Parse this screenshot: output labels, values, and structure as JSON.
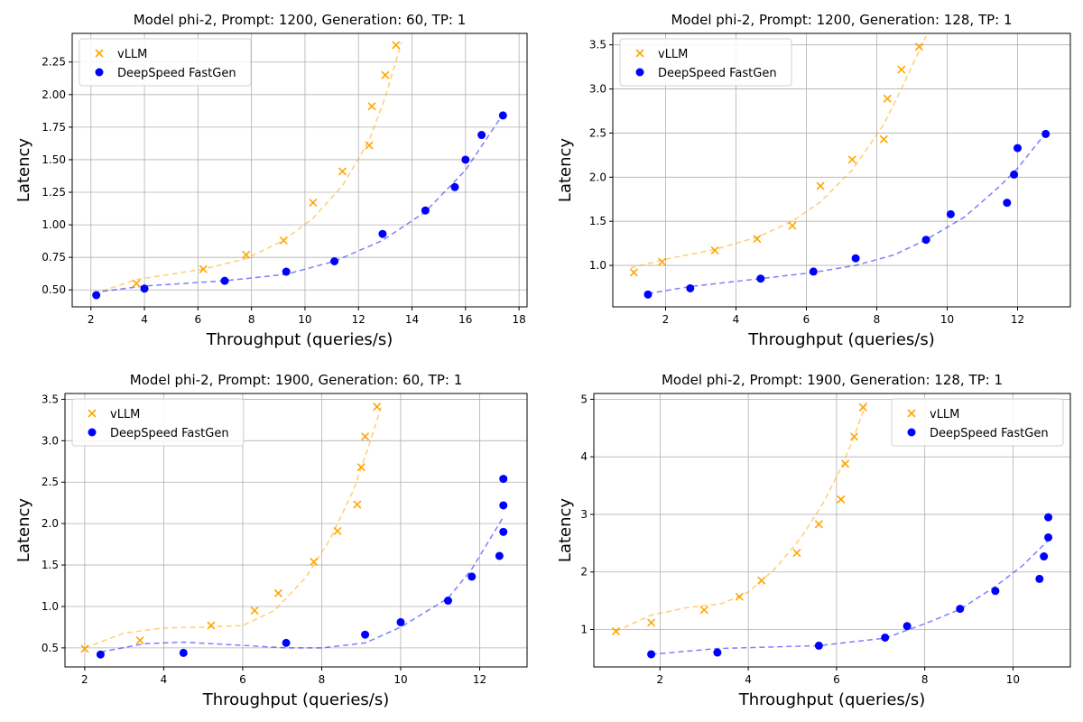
{
  "colors": {
    "vllm": "#ffa500",
    "fastgen": "#0000ff",
    "grid": "#b0b0b0",
    "axis": "#000000"
  },
  "chart_data": [
    {
      "type": "scatter",
      "title": "Model phi-2, Prompt: 1200, Generation: 60, TP: 1",
      "xlabel": "Throughput (queries/s)",
      "ylabel": "Latency",
      "xlim": [
        1.3,
        18.3
      ],
      "ylim": [
        0.37,
        2.47
      ],
      "xticks": [
        2,
        4,
        6,
        8,
        10,
        12,
        14,
        16,
        18
      ],
      "xtick_labels": [
        "2",
        "4",
        "6",
        "8",
        "10",
        "12",
        "14",
        "16",
        "18"
      ],
      "yticks": [
        0.5,
        0.75,
        1.0,
        1.25,
        1.5,
        1.75,
        2.0,
        2.25
      ],
      "ytick_labels": [
        "0.50",
        "0.75",
        "1.00",
        "1.25",
        "1.50",
        "1.75",
        "2.00",
        "2.25"
      ],
      "grid": true,
      "legend_position": "top-left",
      "series": [
        {
          "name": "vLLM",
          "marker": "x",
          "color": "#ffa500",
          "x": [
            3.7,
            6.2,
            7.8,
            9.2,
            10.3,
            11.4,
            12.4,
            12.5,
            13.0,
            13.4
          ],
          "y": [
            0.55,
            0.66,
            0.77,
            0.88,
            1.17,
            1.41,
            1.61,
            1.91,
            2.15,
            2.38
          ],
          "fit": {
            "x": [
              2.1,
              3.7,
              6.2,
              7.8,
              9.2,
              10.3,
              11.4,
              12.4,
              13.0,
              13.6
            ],
            "y": [
              0.47,
              0.58,
              0.66,
              0.74,
              0.88,
              1.05,
              1.3,
              1.65,
              1.98,
              2.4
            ]
          }
        },
        {
          "name": "DeepSpeed FastGen",
          "marker": "o",
          "color": "#0000ff",
          "x": [
            2.2,
            4.0,
            7.0,
            9.3,
            11.1,
            12.9,
            14.5,
            15.6,
            16.0,
            16.6,
            17.4
          ],
          "y": [
            0.46,
            0.51,
            0.57,
            0.64,
            0.72,
            0.93,
            1.11,
            1.29,
            1.5,
            1.69,
            1.84
          ],
          "fit": {
            "x": [
              2.1,
              4.0,
              7.0,
              9.3,
              11.1,
              12.9,
              14.5,
              16.0,
              17.4
            ],
            "y": [
              0.48,
              0.53,
              0.57,
              0.62,
              0.72,
              0.88,
              1.1,
              1.42,
              1.85
            ]
          }
        }
      ]
    },
    {
      "type": "scatter",
      "title": "Model phi-2, Prompt: 1200, Generation: 128, TP: 1",
      "xlabel": "Throughput (queries/s)",
      "ylabel": "Latency",
      "xlim": [
        0.5,
        13.5
      ],
      "ylim": [
        0.53,
        3.63
      ],
      "xticks": [
        2,
        4,
        6,
        8,
        10,
        12
      ],
      "xtick_labels": [
        "2",
        "4",
        "6",
        "8",
        "10",
        "12"
      ],
      "yticks": [
        1.0,
        1.5,
        2.0,
        2.5,
        3.0,
        3.5
      ],
      "ytick_labels": [
        "1.0",
        "1.5",
        "2.0",
        "2.5",
        "3.0",
        "3.5"
      ],
      "grid": true,
      "legend_position": "top-left",
      "series": [
        {
          "name": "vLLM",
          "marker": "x",
          "color": "#ffa500",
          "x": [
            1.1,
            1.9,
            3.4,
            4.6,
            5.6,
            6.4,
            7.3,
            8.2,
            8.3,
            8.7,
            9.2
          ],
          "y": [
            0.92,
            1.04,
            1.17,
            1.3,
            1.45,
            1.9,
            2.2,
            2.43,
            2.89,
            3.22,
            3.48
          ],
          "fit": {
            "x": [
              1.0,
              2.0,
              3.4,
              4.6,
              5.6,
              6.4,
              7.3,
              8.2,
              8.7,
              9.4
            ],
            "y": [
              0.97,
              1.07,
              1.18,
              1.32,
              1.5,
              1.72,
              2.08,
              2.6,
              3.0,
              3.6
            ]
          }
        },
        {
          "name": "DeepSpeed FastGen",
          "marker": "o",
          "color": "#0000ff",
          "x": [
            1.5,
            2.7,
            4.7,
            6.2,
            7.4,
            9.4,
            10.1,
            11.7,
            11.9,
            12.0,
            12.8
          ],
          "y": [
            0.67,
            0.74,
            0.85,
            0.93,
            1.08,
            1.29,
            1.58,
            1.71,
            2.03,
            2.33,
            2.49
          ],
          "fit": {
            "x": [
              1.5,
              2.7,
              4.7,
              6.2,
              7.4,
              8.5,
              9.4,
              10.5,
              11.5,
              12.0,
              12.8
            ],
            "y": [
              0.68,
              0.76,
              0.85,
              0.92,
              1.0,
              1.12,
              1.29,
              1.55,
              1.9,
              2.1,
              2.5
            ]
          }
        }
      ]
    },
    {
      "type": "scatter",
      "title": "Model phi-2, Prompt: 1900, Generation: 60, TP: 1",
      "xlabel": "Throughput (queries/s)",
      "ylabel": "Latency",
      "xlim": [
        1.5,
        13.2
      ],
      "ylim": [
        0.27,
        3.57
      ],
      "xticks": [
        2,
        4,
        6,
        8,
        10,
        12
      ],
      "xtick_labels": [
        "2",
        "4",
        "6",
        "8",
        "10",
        "12"
      ],
      "yticks": [
        0.5,
        1.0,
        1.5,
        2.0,
        2.5,
        3.0,
        3.5
      ],
      "ytick_labels": [
        "0.5",
        "1.0",
        "1.5",
        "2.0",
        "2.5",
        "3.0",
        "3.5"
      ],
      "grid": true,
      "legend_position": "top-left",
      "series": [
        {
          "name": "vLLM",
          "marker": "x",
          "color": "#ffa500",
          "x": [
            2.0,
            3.4,
            5.2,
            6.3,
            6.9,
            7.8,
            8.4,
            8.9,
            9.0,
            9.1,
            9.4
          ],
          "y": [
            0.49,
            0.59,
            0.77,
            0.95,
            1.16,
            1.54,
            1.91,
            2.23,
            2.68,
            3.05,
            3.41
          ],
          "fit": {
            "x": [
              2.0,
              3.0,
              4.0,
              5.0,
              6.0,
              6.8,
              7.6,
              8.2,
              8.8,
              9.2,
              9.5
            ],
            "y": [
              0.5,
              0.68,
              0.74,
              0.75,
              0.77,
              0.95,
              1.35,
              1.8,
              2.4,
              2.95,
              3.4
            ]
          }
        },
        {
          "name": "DeepSpeed FastGen",
          "marker": "o",
          "color": "#0000ff",
          "x": [
            2.4,
            4.5,
            7.1,
            9.1,
            10.0,
            11.2,
            11.8,
            12.5,
            12.6,
            12.6,
            12.6
          ],
          "y": [
            0.42,
            0.44,
            0.56,
            0.66,
            0.81,
            1.07,
            1.36,
            1.61,
            1.9,
            2.22,
            2.54
          ],
          "fit": {
            "x": [
              2.4,
              3.5,
              4.5,
              6.0,
              7.1,
              8.0,
              9.1,
              10.0,
              11.2,
              11.8,
              12.6
            ],
            "y": [
              0.45,
              0.55,
              0.57,
              0.53,
              0.5,
              0.5,
              0.56,
              0.75,
              1.1,
              1.45,
              2.08
            ]
          }
        }
      ]
    },
    {
      "type": "scatter",
      "title": "Model phi-2, Prompt: 1900, Generation: 128, TP: 1",
      "xlabel": "Throughput (queries/s)",
      "ylabel": "Latency",
      "xlim": [
        0.5,
        11.3
      ],
      "ylim": [
        0.35,
        5.1
      ],
      "xticks": [
        2,
        4,
        6,
        8,
        10
      ],
      "xtick_labels": [
        "2",
        "4",
        "6",
        "8",
        "10"
      ],
      "yticks": [
        1,
        2,
        3,
        4,
        5
      ],
      "ytick_labels": [
        "1",
        "2",
        "3",
        "4",
        "5"
      ],
      "grid": true,
      "legend_position": "top-right",
      "series": [
        {
          "name": "vLLM",
          "marker": "x",
          "color": "#ffa500",
          "x": [
            1.0,
            1.8,
            3.0,
            3.8,
            4.3,
            5.1,
            5.6,
            6.1,
            6.2,
            6.4,
            6.6
          ],
          "y": [
            0.97,
            1.12,
            1.34,
            1.57,
            1.85,
            2.33,
            2.83,
            3.26,
            3.88,
            4.35,
            4.86
          ],
          "fit": {
            "x": [
              1.0,
              1.8,
              2.6,
              3.4,
              4.0,
              4.6,
              5.2,
              5.7,
              6.1,
              6.4,
              6.7
            ],
            "y": [
              0.97,
              1.25,
              1.38,
              1.45,
              1.65,
              2.05,
              2.6,
              3.2,
              3.8,
              4.35,
              5.0
            ]
          }
        },
        {
          "name": "DeepSpeed FastGen",
          "marker": "o",
          "color": "#0000ff",
          "x": [
            1.8,
            3.3,
            5.6,
            7.1,
            7.6,
            8.8,
            9.6,
            10.6,
            10.7,
            10.8,
            10.8
          ],
          "y": [
            0.57,
            0.6,
            0.72,
            0.86,
            1.06,
            1.36,
            1.67,
            1.88,
            2.27,
            2.6,
            2.95
          ],
          "fit": {
            "x": [
              1.8,
              3.3,
              5.6,
              7.1,
              8.0,
              8.8,
              9.6,
              10.2,
              10.8
            ],
            "y": [
              0.57,
              0.67,
              0.72,
              0.85,
              1.1,
              1.35,
              1.75,
              2.1,
              2.55
            ]
          }
        }
      ]
    }
  ]
}
